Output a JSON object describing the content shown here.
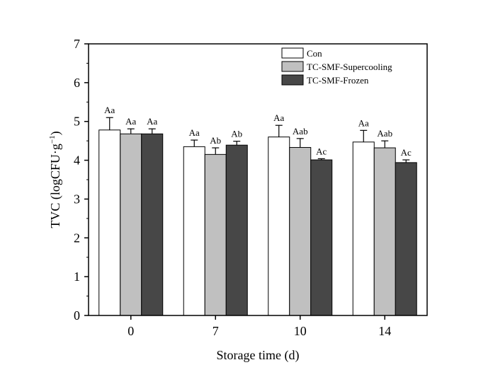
{
  "chart_data": {
    "type": "bar",
    "xlabel": "Storage time (d)",
    "ylabel": "TVC (logCFU·g",
    "ylabel_sup": "−1",
    "ylabel_close": ")",
    "ylim": [
      0,
      7
    ],
    "yticks": [
      "0",
      "1",
      "2",
      "3",
      "4",
      "5",
      "6",
      "7"
    ],
    "categories": [
      "0",
      "7",
      "10",
      "14"
    ],
    "legend_position": "top-right",
    "series": [
      {
        "name": "Con",
        "color": "#ffffff",
        "values": [
          4.78,
          4.35,
          4.6,
          4.47
        ],
        "errors": [
          0.32,
          0.17,
          0.3,
          0.3
        ],
        "labels": [
          "Aa",
          "Aa",
          "Aa",
          "Aa"
        ]
      },
      {
        "name": "TC-SMF-Supercooling",
        "color": "#c0c0c0",
        "values": [
          4.68,
          4.15,
          4.33,
          4.32
        ],
        "errors": [
          0.13,
          0.17,
          0.23,
          0.18
        ],
        "labels": [
          "Aa",
          "Ab",
          "Aab",
          "Aab"
        ]
      },
      {
        "name": "TC-SMF-Frozen",
        "color": "#474747",
        "values": [
          4.68,
          4.39,
          4.01,
          3.94
        ],
        "errors": [
          0.13,
          0.1,
          0.03,
          0.07
        ],
        "labels": [
          "Aa",
          "Ab",
          "Ac",
          "Ac"
        ]
      }
    ]
  }
}
